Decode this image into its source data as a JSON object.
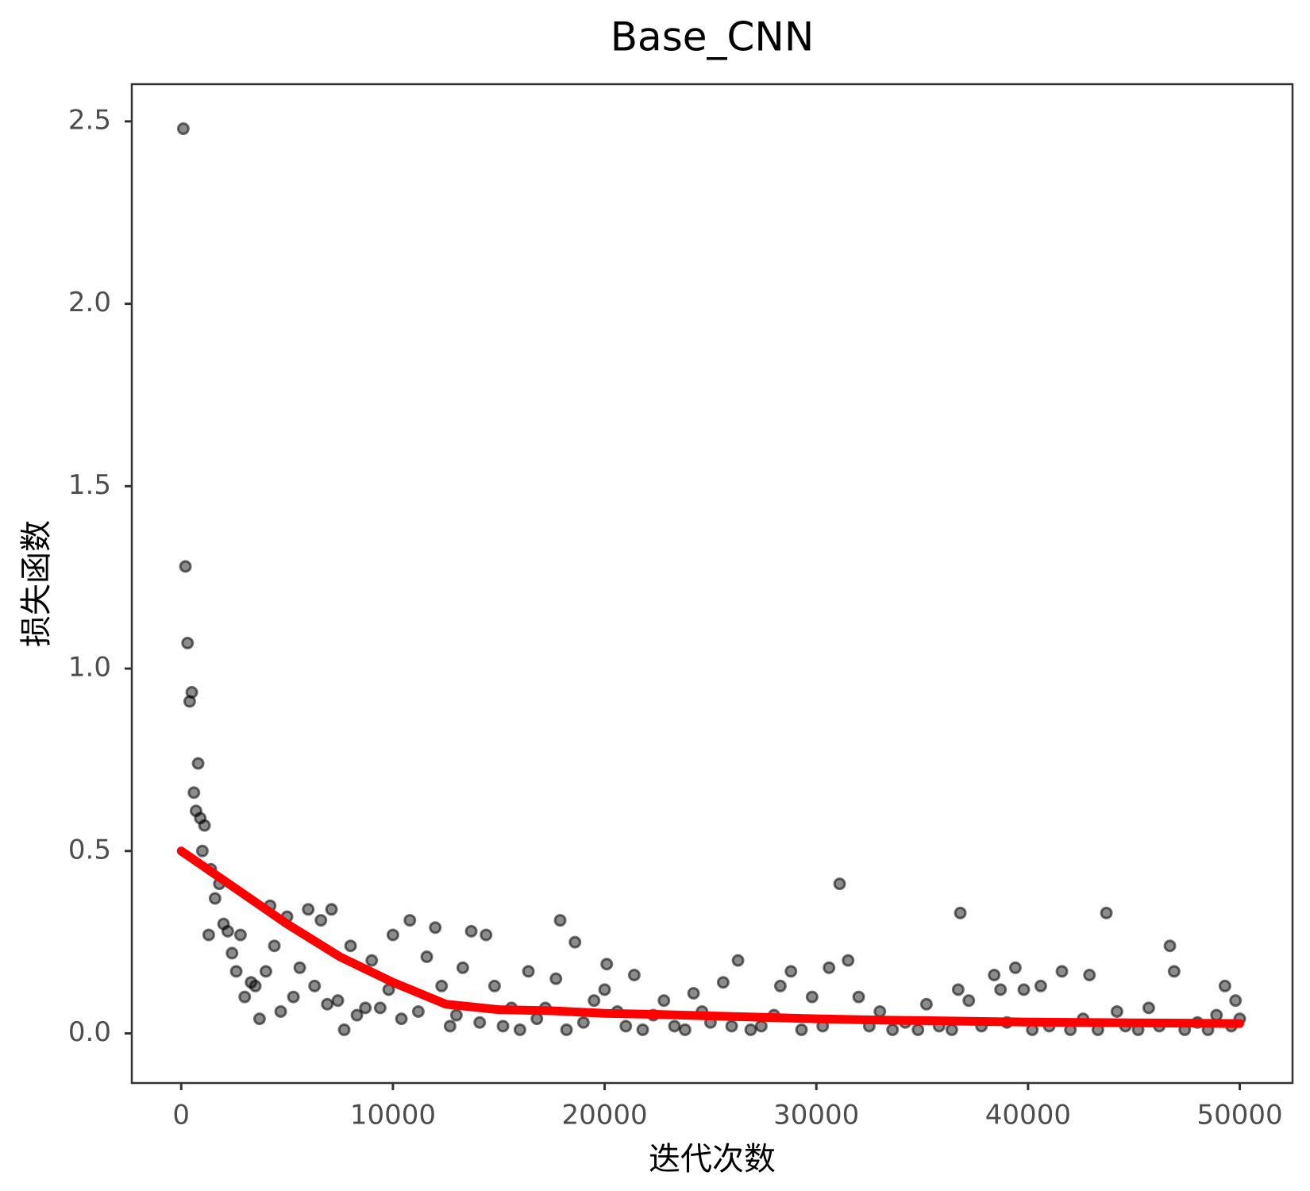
{
  "chart_data": {
    "type": "scatter",
    "title": "Base_CNN",
    "x_label": "迭代次数",
    "y_label": "损失函数",
    "xlim": [
      -2334,
      52492
    ],
    "ylim": [
      -0.136,
      2.602
    ],
    "xticks": [
      0,
      10000,
      20000,
      30000,
      40000,
      50000
    ],
    "yticks": [
      {
        "value": 0,
        "label": "0.0"
      },
      0.5,
      {
        "value": 1,
        "label": "1.0"
      },
      1.5,
      {
        "value": 2,
        "label": "2.0"
      },
      2.5
    ],
    "grid": false,
    "series": [
      {
        "type": "scatter",
        "color": "#000000",
        "x": [
          100,
          200,
          300,
          400,
          500,
          600,
          700,
          800,
          900,
          1000,
          1100,
          1300,
          1400,
          1600,
          1800,
          2000,
          2200,
          2400,
          2600,
          2800,
          3000,
          3300,
          3500,
          3700,
          4000,
          4200,
          4400,
          4700,
          5000,
          5300,
          5600,
          6000,
          6300,
          6600,
          6900,
          7100,
          7400,
          7700,
          8000,
          8300,
          8700,
          9000,
          9400,
          9800,
          10000,
          10400,
          10800,
          11200,
          11600,
          12000,
          12300,
          12700,
          13000,
          13300,
          13700,
          14100,
          14400,
          14800,
          15200,
          15600,
          16000,
          16400,
          16800,
          17200,
          17700,
          17900,
          18200,
          18600,
          19000,
          19500,
          20000,
          20100,
          20600,
          21000,
          21400,
          21800,
          22300,
          22800,
          23300,
          23800,
          24200,
          24600,
          25000,
          25600,
          26000,
          26300,
          26900,
          27400,
          28000,
          28300,
          28800,
          29300,
          29800,
          30300,
          30600,
          31100,
          31500,
          32000,
          32500,
          33000,
          33600,
          34200,
          34800,
          35200,
          35800,
          36400,
          36700,
          36800,
          37200,
          37800,
          38400,
          38700,
          39000,
          39400,
          39800,
          40200,
          40600,
          41000,
          41600,
          42000,
          42600,
          42900,
          43300,
          43700,
          44200,
          44600,
          45200,
          45700,
          46200,
          46700,
          46900,
          47400,
          48000,
          48500,
          48900,
          49300,
          49600,
          49800,
          50000
        ],
        "values": [
          2.48,
          1.28,
          1.07,
          0.91,
          0.935,
          0.66,
          0.61,
          0.74,
          0.59,
          0.5,
          0.57,
          0.27,
          0.45,
          0.37,
          0.41,
          0.3,
          0.28,
          0.22,
          0.17,
          0.27,
          0.1,
          0.14,
          0.13,
          0.04,
          0.17,
          0.35,
          0.24,
          0.06,
          0.32,
          0.1,
          0.18,
          0.34,
          0.13,
          0.31,
          0.08,
          0.34,
          0.09,
          0.01,
          0.24,
          0.05,
          0.07,
          0.2,
          0.07,
          0.12,
          0.27,
          0.04,
          0.31,
          0.06,
          0.21,
          0.29,
          0.13,
          0.02,
          0.05,
          0.18,
          0.28,
          0.03,
          0.27,
          0.13,
          0.02,
          0.07,
          0.01,
          0.17,
          0.04,
          0.07,
          0.15,
          0.31,
          0.01,
          0.25,
          0.03,
          0.09,
          0.12,
          0.19,
          0.06,
          0.02,
          0.16,
          0.01,
          0.05,
          0.09,
          0.02,
          0.01,
          0.11,
          0.06,
          0.03,
          0.14,
          0.02,
          0.2,
          0.01,
          0.02,
          0.05,
          0.13,
          0.17,
          0.01,
          0.1,
          0.02,
          0.18,
          0.41,
          0.2,
          0.1,
          0.02,
          0.06,
          0.01,
          0.03,
          0.01,
          0.08,
          0.02,
          0.01,
          0.12,
          0.33,
          0.09,
          0.02,
          0.16,
          0.12,
          0.03,
          0.18,
          0.12,
          0.01,
          0.13,
          0.02,
          0.17,
          0.01,
          0.04,
          0.16,
          0.01,
          0.33,
          0.06,
          0.02,
          0.01,
          0.07,
          0.02,
          0.24,
          0.17,
          0.01,
          0.03,
          0.01,
          0.05,
          0.13,
          0.02,
          0.09,
          0.04
        ]
      },
      {
        "type": "line",
        "color": "#ff0000",
        "x": [
          0,
          2500,
          5000,
          7500,
          10000,
          12500,
          15000,
          17500,
          20000,
          22500,
          25000,
          27500,
          30000,
          32500,
          35000,
          37500,
          40000,
          42500,
          45000,
          47500,
          50000
        ],
        "values": [
          0.5,
          0.4,
          0.3,
          0.21,
          0.14,
          0.08,
          0.065,
          0.062,
          0.055,
          0.052,
          0.048,
          0.044,
          0.04,
          0.037,
          0.035,
          0.033,
          0.031,
          0.03,
          0.029,
          0.028,
          0.027
        ]
      }
    ]
  }
}
